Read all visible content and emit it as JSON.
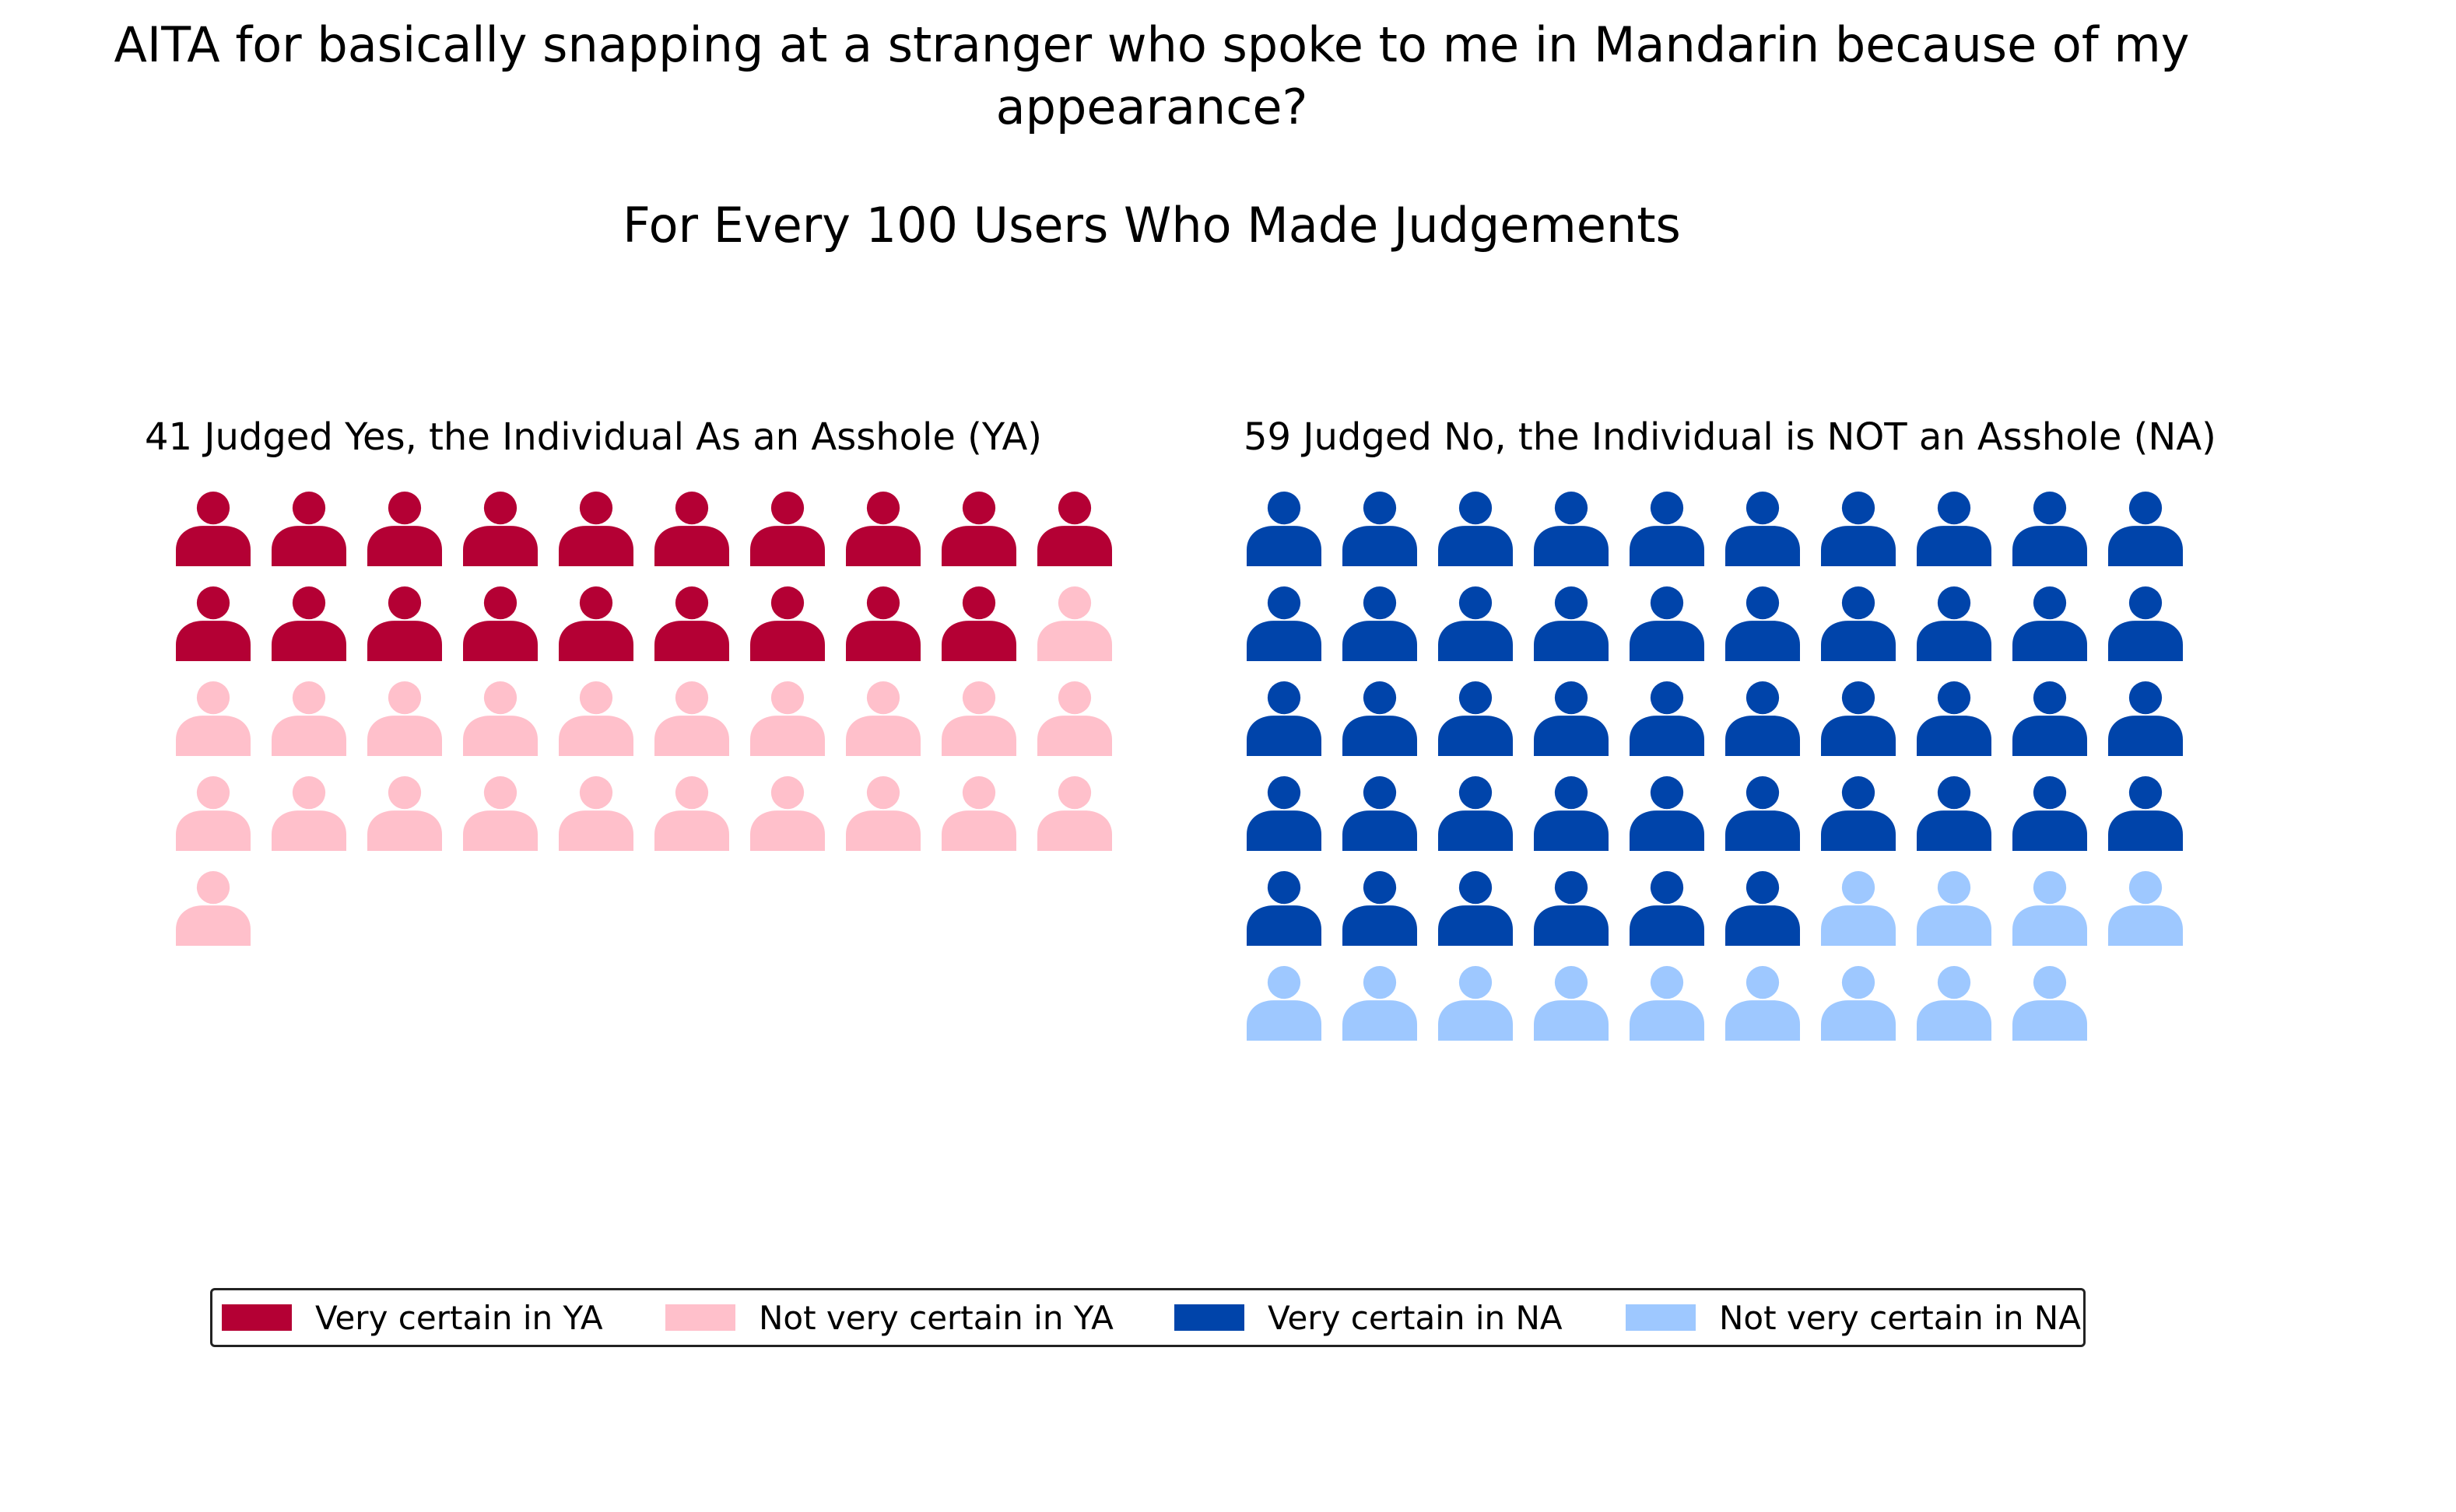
{
  "title": "AITA for basically snapping at a stranger who spoke to me in Mandarin because of my appearance?",
  "subtitle": "For Every 100 Users Who Made Judgements",
  "chart_data": {
    "type": "waffle",
    "total": 100,
    "panels": [
      {
        "title": "41 Judged Yes, the Individual As an Asshole (YA)",
        "categories": [
          {
            "name": "Very certain in YA",
            "count": 19,
            "color": "#b40034"
          },
          {
            "name": "Not very certain in YA",
            "count": 22,
            "color": "#ffc0cb"
          }
        ]
      },
      {
        "title": "59 Judged No, the Individual is NOT an Asshole (NA)",
        "categories": [
          {
            "name": "Very certain in NA",
            "count": 46,
            "color": "#0044aa"
          },
          {
            "name": "Not very certain in NA",
            "count": 13,
            "color": "#9ec8ff"
          }
        ]
      }
    ],
    "icon": "person-icon",
    "legend": {
      "placement": "bottom",
      "entries": [
        {
          "label": "Very certain in YA",
          "color": "#b40034"
        },
        {
          "label": "Not very certain in YA",
          "color": "#ffc0cb"
        },
        {
          "label": "Very certain in NA",
          "color": "#0044aa"
        },
        {
          "label": "Not very certain in NA",
          "color": "#9ec8ff"
        }
      ]
    }
  }
}
